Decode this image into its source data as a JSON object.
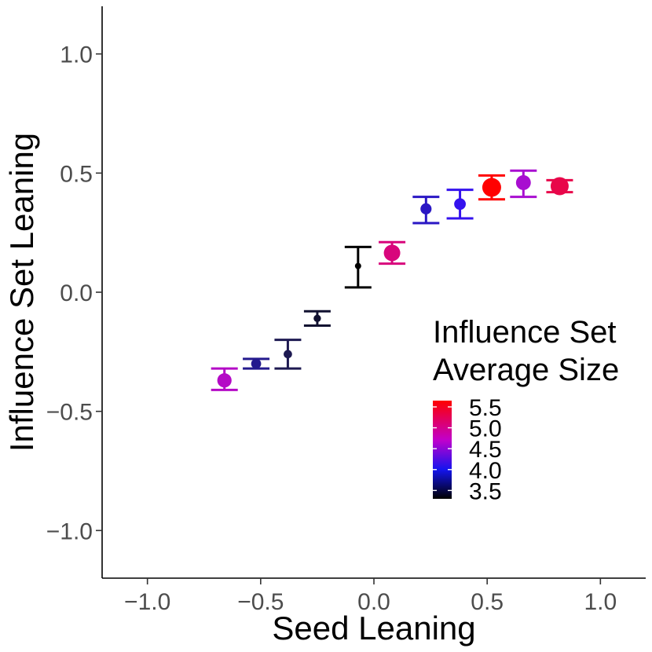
{
  "chart_data": {
    "type": "scatter",
    "xlabel": "Seed Leaning",
    "ylabel": "Influence Set Leaning",
    "xlim": [
      -1.2,
      1.2
    ],
    "ylim": [
      -1.2,
      1.2
    ],
    "x_ticks": [
      -1.0,
      -0.5,
      0.0,
      0.5,
      1.0
    ],
    "x_tick_labels": [
      "−1.0",
      "−0.5",
      "0.0",
      "0.5",
      "1.0"
    ],
    "y_ticks": [
      -1.0,
      -0.5,
      0.0,
      0.5,
      1.0
    ],
    "y_tick_labels": [
      "−1.0",
      "−0.5",
      "0.0",
      "0.5",
      "1.0"
    ],
    "grid": false,
    "legend": {
      "title_lines": [
        "Influence Set",
        "Average Size"
      ],
      "placement": "bottom-right inside",
      "range": [
        3.3,
        5.65
      ],
      "ticks": [
        3.5,
        4.0,
        4.5,
        5.0,
        5.5
      ],
      "tick_labels": [
        "3.5",
        "4.0",
        "4.5",
        "5.0",
        "5.5"
      ],
      "gradient_stops": [
        {
          "value": 3.3,
          "color": "#000000"
        },
        {
          "value": 4.0,
          "color": "#1414ee"
        },
        {
          "value": 4.7,
          "color": "#c000cc"
        },
        {
          "value": 5.65,
          "color": "#ff0000"
        }
      ]
    },
    "points": [
      {
        "x": -0.66,
        "y": -0.37,
        "ymin": -0.41,
        "ymax": -0.32,
        "size": 4.8,
        "color": "#b40ac6"
      },
      {
        "x": -0.52,
        "y": -0.3,
        "ymin": -0.32,
        "ymax": -0.28,
        "size": 4.0,
        "color": "#241a8e"
      },
      {
        "x": -0.38,
        "y": -0.26,
        "ymin": -0.32,
        "ymax": -0.2,
        "size": 3.7,
        "color": "#1e1a52"
      },
      {
        "x": -0.25,
        "y": -0.11,
        "ymin": -0.14,
        "ymax": -0.08,
        "size": 3.5,
        "color": "#111130"
      },
      {
        "x": -0.07,
        "y": 0.11,
        "ymin": 0.02,
        "ymax": 0.19,
        "size": 3.3,
        "color": "#000000"
      },
      {
        "x": 0.08,
        "y": 0.165,
        "ymin": 0.12,
        "ymax": 0.21,
        "size": 5.2,
        "color": "#d8067c"
      },
      {
        "x": 0.23,
        "y": 0.35,
        "ymin": 0.29,
        "ymax": 0.4,
        "size": 4.2,
        "color": "#2a17c4"
      },
      {
        "x": 0.38,
        "y": 0.37,
        "ymin": 0.31,
        "ymax": 0.43,
        "size": 4.3,
        "color": "#3412ee"
      },
      {
        "x": 0.52,
        "y": 0.44,
        "ymin": 0.39,
        "ymax": 0.49,
        "size": 5.65,
        "color": "#ff0000"
      },
      {
        "x": 0.66,
        "y": 0.46,
        "ymin": 0.4,
        "ymax": 0.51,
        "size": 4.9,
        "color": "#a80ed0"
      },
      {
        "x": 0.82,
        "y": 0.445,
        "ymin": 0.42,
        "ymax": 0.47,
        "size": 5.5,
        "color": "#e8064a"
      }
    ]
  }
}
